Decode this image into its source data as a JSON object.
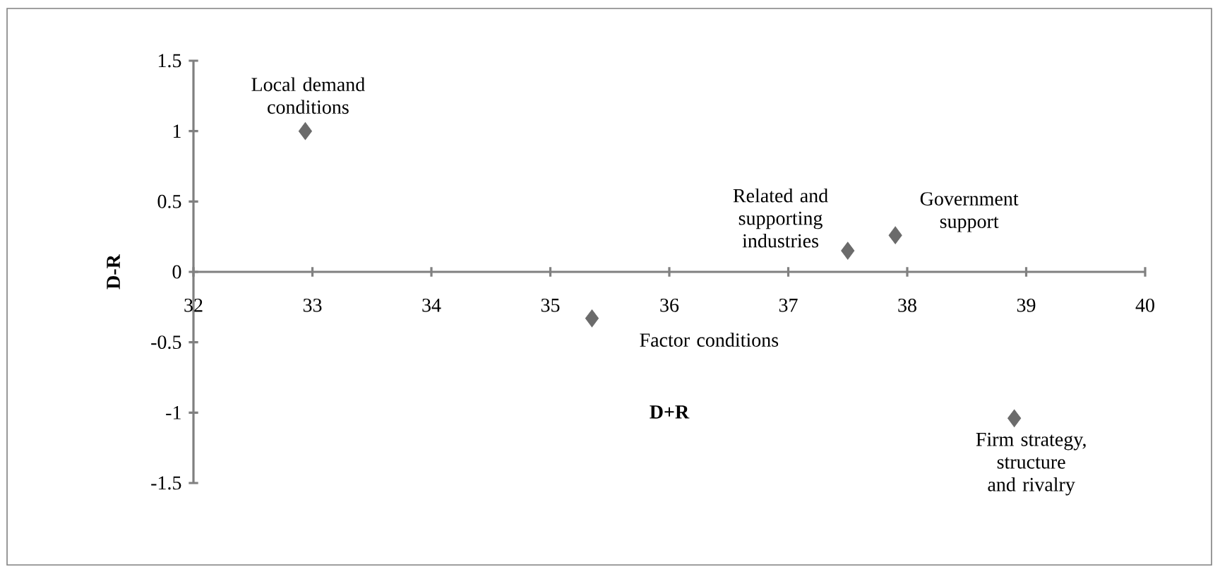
{
  "chart_data": {
    "type": "scatter",
    "xlabel": "D+R",
    "ylabel": "D-R",
    "x": [
      32.94,
      35.35,
      37.5,
      37.9,
      38.9
    ],
    "values": [
      1.0,
      -0.33,
      0.15,
      0.26,
      -1.04
    ],
    "color": "#6b6b6b",
    "marker": "diamond",
    "xlim": [
      32,
      40
    ],
    "xticks": [
      32,
      33,
      34,
      35,
      36,
      37,
      38,
      39,
      40
    ],
    "ylim": [
      -1.5,
      1.5
    ],
    "yticks": [
      -1.5,
      -1,
      -0.5,
      0,
      0.5,
      1,
      1.5
    ],
    "annotations": [
      {
        "text": "Local demand conditions",
        "x": 32.94,
        "y": 1.0
      },
      {
        "text": "Factor conditions",
        "x": 35.35,
        "y": -0.33
      },
      {
        "text": "Related and supporting industries",
        "x": 37.5,
        "y": 0.15
      },
      {
        "text": "Government support",
        "x": 37.9,
        "y": 0.26
      },
      {
        "text": "Firm strategy, structure and rivalry",
        "x": 38.9,
        "y": -1.04
      }
    ]
  }
}
